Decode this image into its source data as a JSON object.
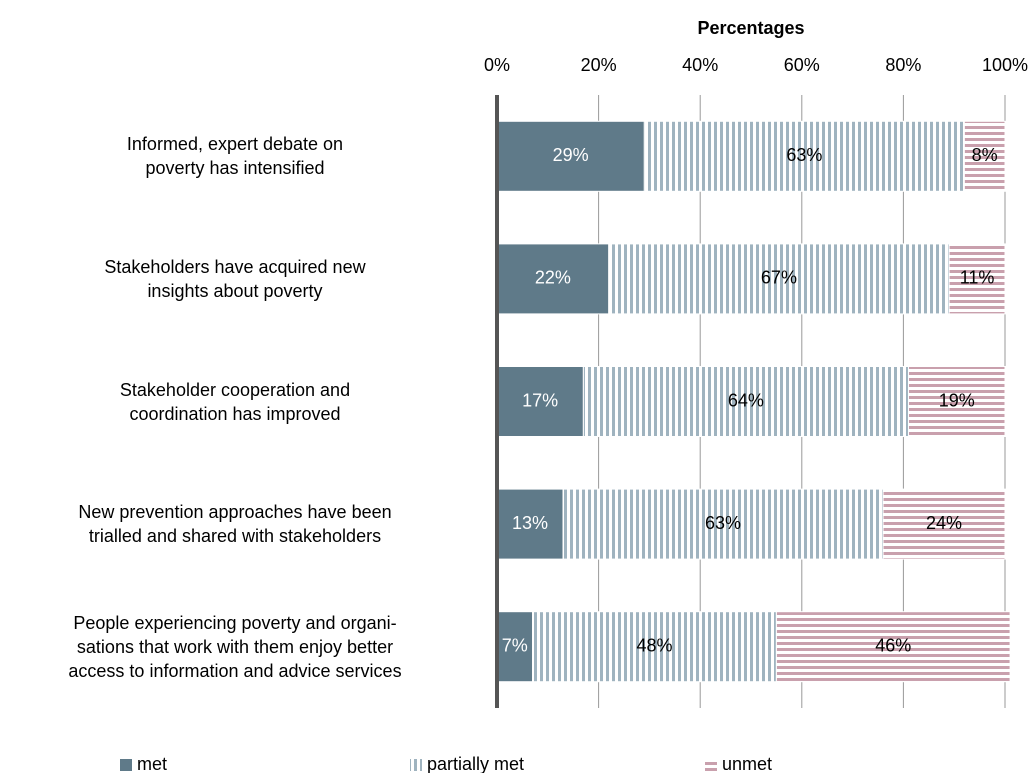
{
  "chart_data": {
    "type": "stacked_barh",
    "xlabel": "Percentages",
    "categories": [
      "Informed, expert debate on\npoverty has intensified",
      "Stakeholders have acquired new\ninsights about poverty",
      "Stakeholder cooperation and\ncoordination has improved",
      "New prevention approaches have been\ntrialled and shared with stakeholders",
      "People experiencing poverty and organi-\nsations that work with them enjoy better\naccess to information and advice services"
    ],
    "series": [
      {
        "name": "met",
        "color": "#5f7a89",
        "values": [
          29,
          22,
          17,
          13,
          7
        ],
        "value_labels": [
          "29%",
          "22%",
          "17%",
          "13%",
          "7%"
        ]
      },
      {
        "name": "partially met",
        "color": "#9fb3bf",
        "hatch": "vertical",
        "values": [
          63,
          67,
          64,
          63,
          48
        ],
        "value_labels": [
          "63%",
          "67%",
          "64%",
          "63%",
          "48%"
        ]
      },
      {
        "name": "unmet",
        "color": "#c9a0ad",
        "hatch": "horizontal",
        "values": [
          8,
          11,
          19,
          24,
          46
        ],
        "value_labels": [
          "8%",
          "11%",
          "19%",
          "24%",
          "46%"
        ]
      }
    ],
    "xlim": [
      0,
      100
    ],
    "xticks": [
      {
        "value": 0,
        "label": "0%"
      },
      {
        "value": 20,
        "label": "20%"
      },
      {
        "value": 40,
        "label": "40%"
      },
      {
        "value": 60,
        "label": "60%"
      },
      {
        "value": 80,
        "label": "80%"
      },
      {
        "value": 100,
        "label": "100%"
      }
    ],
    "grid": true,
    "legend": "bottom"
  }
}
